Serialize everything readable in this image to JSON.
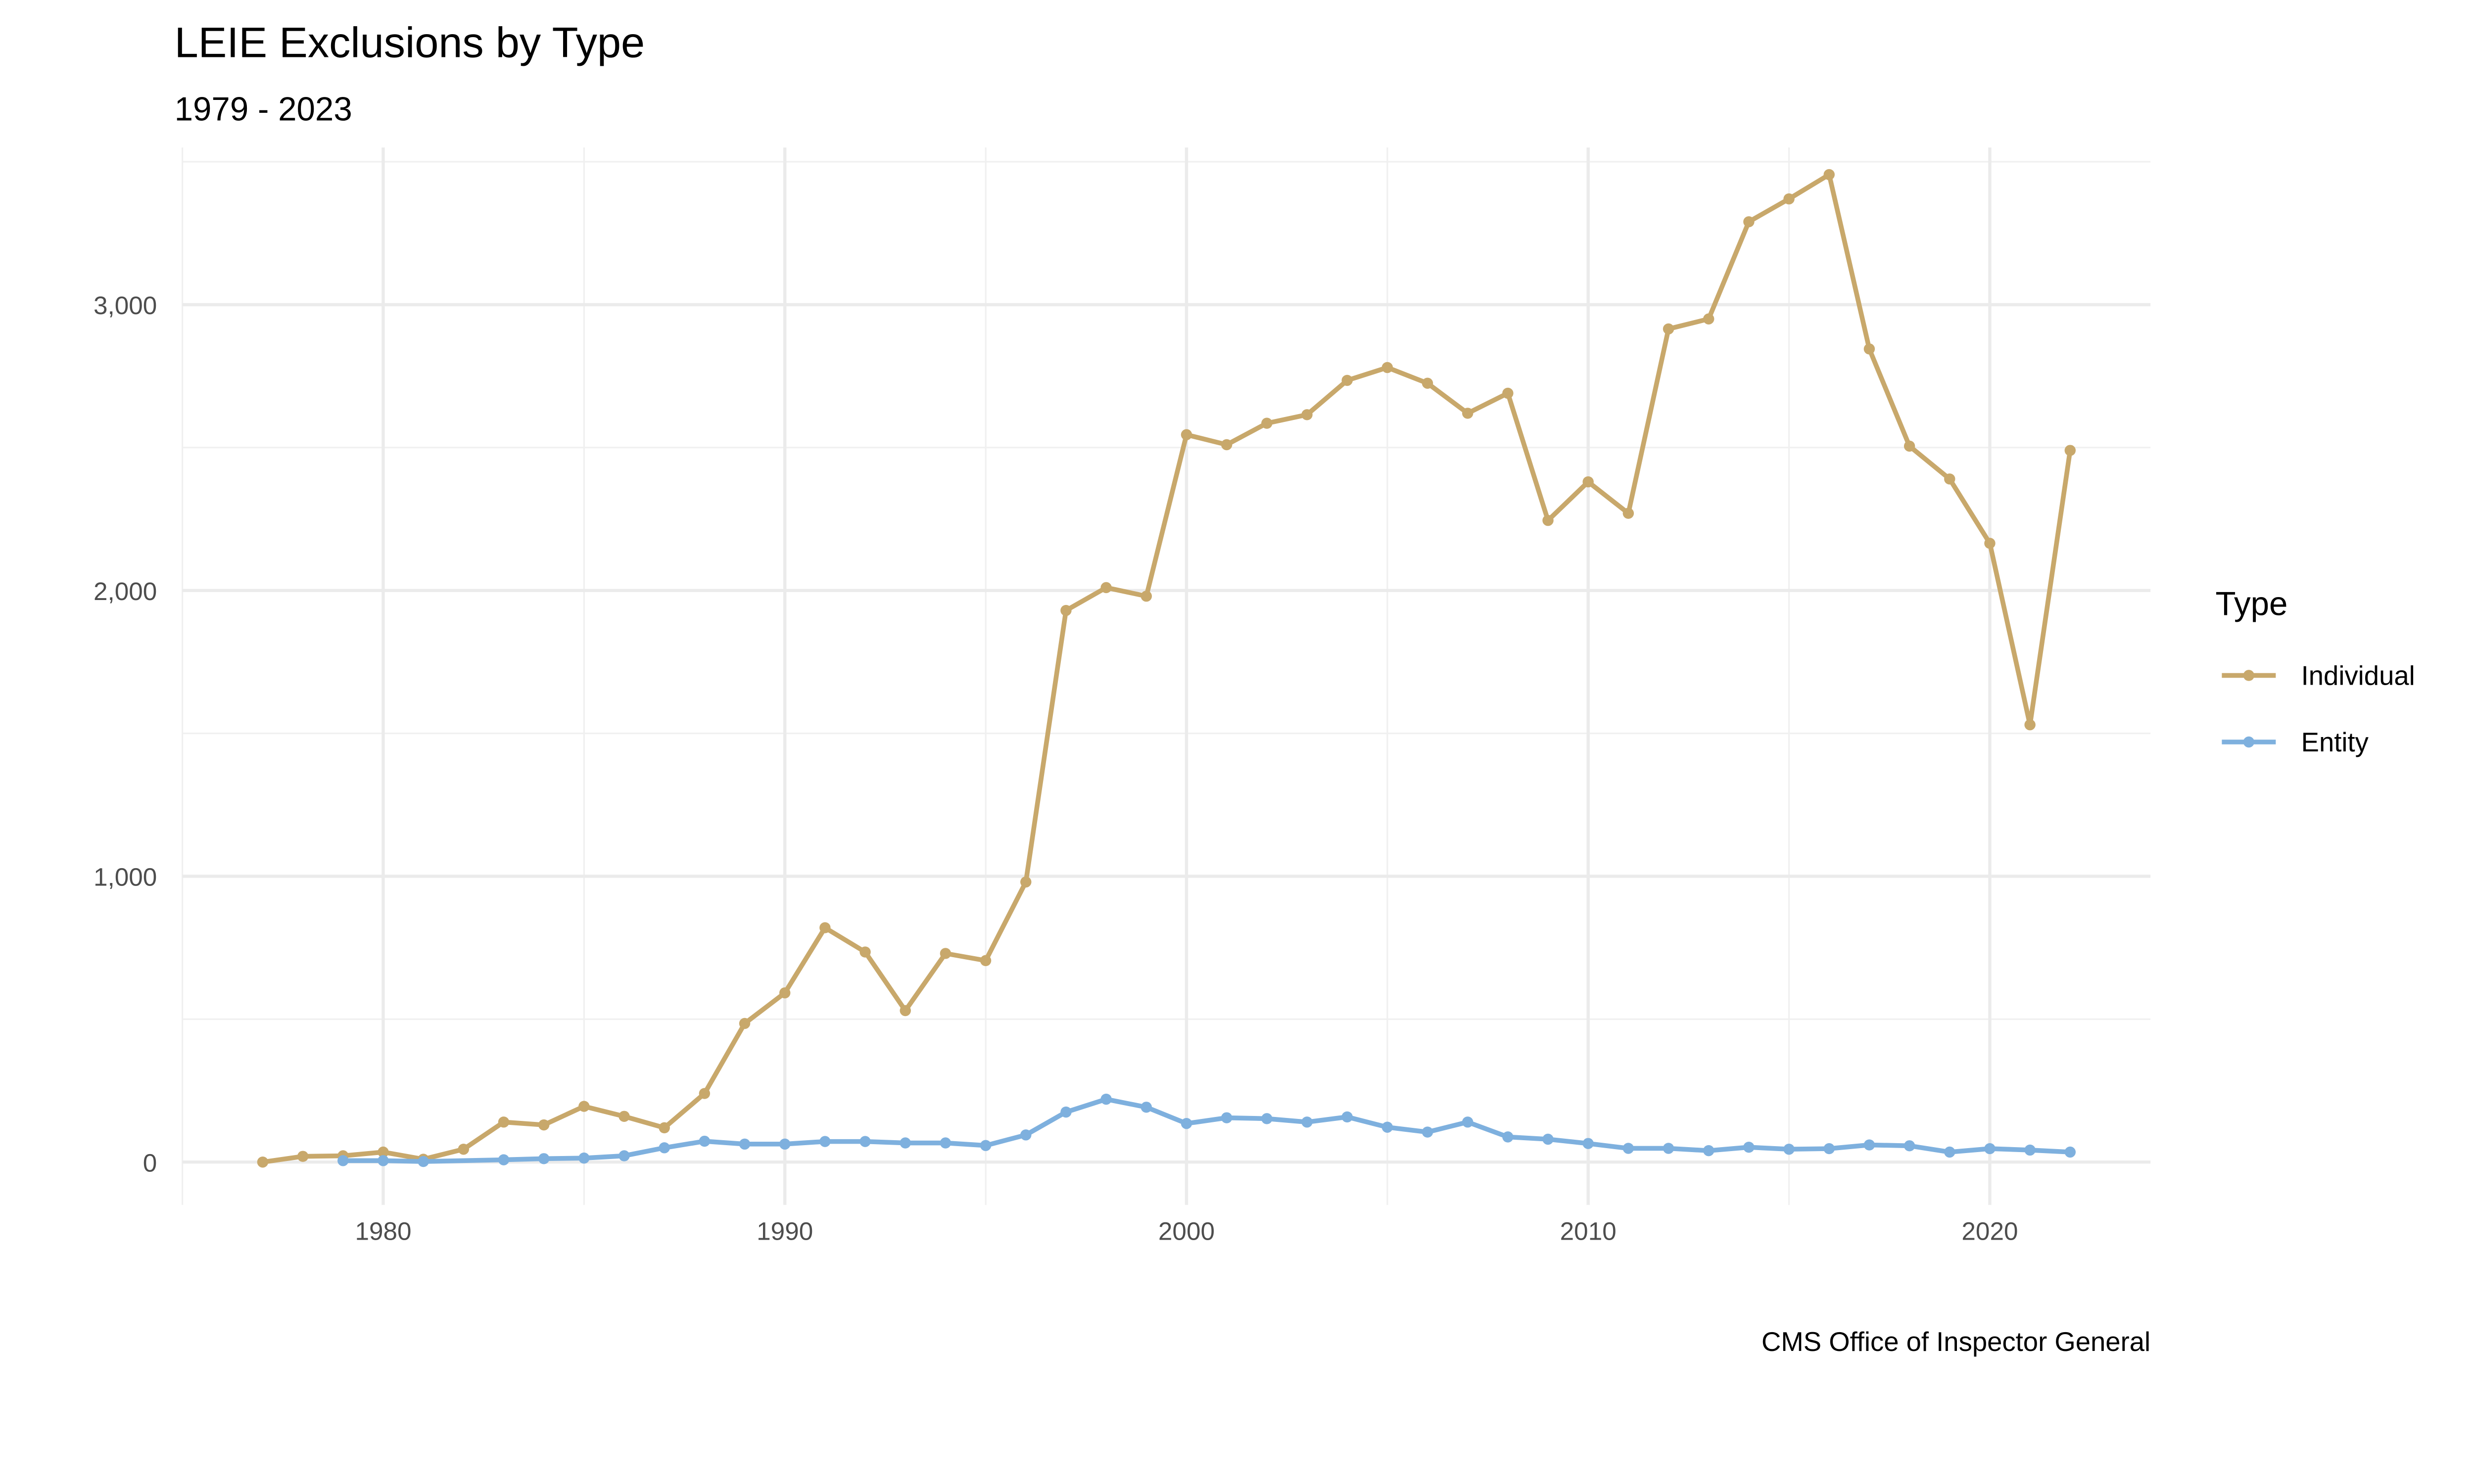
{
  "chart_data": {
    "type": "line",
    "title": "LEIE Exclusions by Type",
    "subtitle": "1979 - 2023",
    "caption": "CMS Office of Inspector General",
    "xlabel": "",
    "ylabel": "",
    "xlim": [
      1975,
      2024
    ],
    "ylim": [
      -150,
      3550
    ],
    "x_ticks": [
      1980,
      1990,
      2000,
      2010,
      2020
    ],
    "x_tick_labels": [
      "1980",
      "1990",
      "2000",
      "2010",
      "2020"
    ],
    "y_ticks": [
      0,
      1000,
      2000,
      3000
    ],
    "y_tick_labels": [
      "0",
      "1,000",
      "2,000",
      "3,000"
    ],
    "grid": true,
    "legend": {
      "title": "Type",
      "position": "right"
    },
    "series": [
      {
        "name": "Individual",
        "color": "#C8A86B",
        "x": [
          1977,
          1978,
          1979,
          1980,
          1981,
          1982,
          1983,
          1984,
          1985,
          1986,
          1987,
          1988,
          1989,
          1990,
          1991,
          1992,
          1993,
          1994,
          1995,
          1996,
          1997,
          1998,
          1999,
          2000,
          2001,
          2002,
          2003,
          2004,
          2005,
          2006,
          2007,
          2008,
          2009,
          2010,
          2011,
          2012,
          2013,
          2014,
          2015,
          2016,
          2017,
          2018,
          2019,
          2020,
          2021,
          2022
        ],
        "y": [
          0,
          20,
          22,
          35,
          10,
          45,
          140,
          130,
          195,
          160,
          120,
          240,
          485,
          592,
          820,
          735,
          530,
          730,
          705,
          980,
          1930,
          2010,
          1980,
          2545,
          2510,
          2585,
          2615,
          2735,
          2780,
          2725,
          2620,
          2690,
          2245,
          2380,
          2270,
          2915,
          2950,
          3290,
          3370,
          3455,
          2845,
          2505,
          2390,
          2165,
          1530,
          2490
        ]
      },
      {
        "name": "Entity",
        "color": "#7EB0DE",
        "x": [
          1979,
          1980,
          1981,
          1983,
          1984,
          1985,
          1986,
          1987,
          1988,
          1989,
          1990,
          1991,
          1992,
          1993,
          1994,
          1995,
          1996,
          1997,
          1998,
          1999,
          2000,
          2001,
          2002,
          2003,
          2004,
          2005,
          2006,
          2007,
          2008,
          2009,
          2010,
          2011,
          2012,
          2013,
          2014,
          2015,
          2016,
          2017,
          2018,
          2019,
          2020,
          2021,
          2022
        ],
        "y": [
          5,
          5,
          2,
          8,
          12,
          14,
          22,
          50,
          73,
          63,
          63,
          72,
          72,
          67,
          67,
          58,
          95,
          175,
          220,
          192,
          135,
          155,
          152,
          140,
          158,
          122,
          105,
          140,
          88,
          80,
          65,
          48,
          48,
          40,
          52,
          45,
          47,
          60,
          57,
          35,
          47,
          42,
          35
        ]
      }
    ]
  }
}
